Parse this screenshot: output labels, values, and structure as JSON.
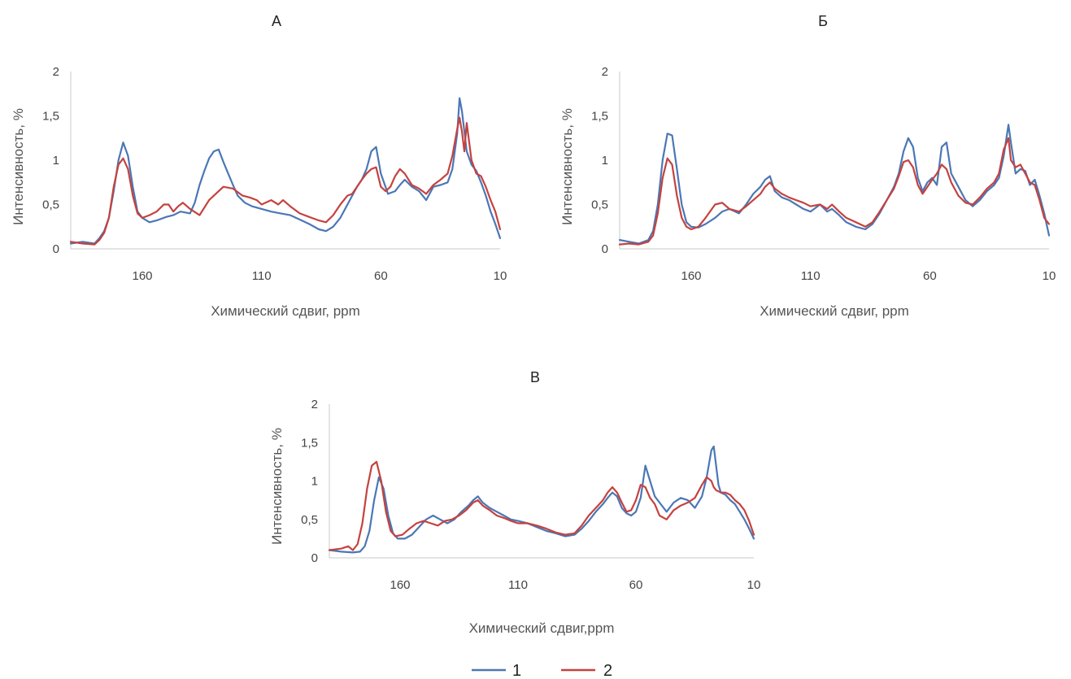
{
  "colors": {
    "series1": "#4b77b5",
    "series2": "#c5423e",
    "axis": "#c8c8c8"
  },
  "legend": {
    "items": [
      "1",
      "2"
    ]
  },
  "chart_data": [
    {
      "type": "line",
      "title": "А",
      "xlabel": "Химический сдвиг, ppm",
      "ylabel": "Интенсивность, %",
      "xlim": [
        190,
        10
      ],
      "ylim": [
        0,
        2
      ],
      "x_ticks": [
        "160",
        "110",
        "60",
        "10"
      ],
      "y_ticks": [
        "0",
        "0,5",
        "1",
        "1,5",
        "2"
      ],
      "grid": false,
      "series": [
        {
          "name": "1",
          "x": [
            190,
            185,
            180,
            178,
            176,
            174,
            172,
            170,
            168,
            166,
            164,
            162,
            160,
            157,
            154,
            150,
            147,
            144,
            140,
            138,
            136,
            134,
            132,
            130,
            128,
            126,
            124,
            122,
            120,
            117,
            114,
            110,
            106,
            102,
            98,
            94,
            90,
            86,
            83,
            80,
            77,
            74,
            72,
            70,
            68,
            66,
            64,
            62,
            60,
            57,
            54,
            52,
            50,
            47,
            44,
            41,
            38,
            35,
            32,
            30,
            28,
            27,
            26,
            24,
            22,
            20,
            18,
            16,
            14,
            12,
            10
          ],
          "y": [
            0.06,
            0.08,
            0.06,
            0.12,
            0.2,
            0.35,
            0.65,
            1.0,
            1.2,
            1.05,
            0.7,
            0.42,
            0.35,
            0.3,
            0.32,
            0.36,
            0.38,
            0.42,
            0.4,
            0.52,
            0.72,
            0.88,
            1.02,
            1.1,
            1.12,
            0.98,
            0.85,
            0.72,
            0.6,
            0.52,
            0.48,
            0.45,
            0.42,
            0.4,
            0.38,
            0.33,
            0.28,
            0.22,
            0.2,
            0.25,
            0.35,
            0.5,
            0.6,
            0.7,
            0.78,
            0.9,
            1.1,
            1.15,
            0.85,
            0.62,
            0.65,
            0.72,
            0.78,
            0.7,
            0.65,
            0.55,
            0.7,
            0.72,
            0.75,
            0.9,
            1.3,
            1.7,
            1.55,
            1.1,
            0.95,
            0.88,
            0.75,
            0.6,
            0.42,
            0.28,
            0.12
          ]
        },
        {
          "name": "2",
          "x": [
            190,
            185,
            180,
            178,
            176,
            174,
            172,
            170,
            168,
            166,
            164,
            162,
            160,
            157,
            154,
            151,
            149,
            147,
            145,
            143,
            140,
            136,
            132,
            128,
            126,
            122,
            118,
            115,
            112,
            110,
            106,
            103,
            101,
            98,
            94,
            90,
            86,
            83,
            80,
            77,
            74,
            72,
            70,
            68,
            66,
            64,
            62,
            60,
            58,
            56,
            54,
            52,
            50,
            47,
            44,
            41,
            38,
            35,
            32,
            30,
            28,
            27,
            26,
            25,
            24,
            22,
            20,
            18,
            16,
            14,
            12,
            10
          ],
          "y": [
            0.08,
            0.06,
            0.05,
            0.1,
            0.18,
            0.35,
            0.7,
            0.95,
            1.02,
            0.9,
            0.6,
            0.4,
            0.35,
            0.38,
            0.42,
            0.5,
            0.5,
            0.42,
            0.48,
            0.52,
            0.45,
            0.38,
            0.55,
            0.65,
            0.7,
            0.68,
            0.6,
            0.58,
            0.55,
            0.5,
            0.55,
            0.5,
            0.55,
            0.48,
            0.4,
            0.36,
            0.32,
            0.3,
            0.38,
            0.5,
            0.6,
            0.62,
            0.7,
            0.78,
            0.85,
            0.9,
            0.92,
            0.7,
            0.65,
            0.7,
            0.82,
            0.9,
            0.85,
            0.72,
            0.68,
            0.62,
            0.72,
            0.78,
            0.85,
            1.05,
            1.35,
            1.48,
            1.32,
            1.1,
            1.42,
            1.0,
            0.85,
            0.82,
            0.7,
            0.55,
            0.42,
            0.22
          ]
        }
      ]
    },
    {
      "type": "line",
      "title": "Б",
      "xlabel": "Химический сдвиг, ppm",
      "ylabel": "Интенсивность, %",
      "xlim": [
        190,
        10
      ],
      "ylim": [
        0,
        2
      ],
      "x_ticks": [
        "160",
        "110",
        "60",
        "10"
      ],
      "y_ticks": [
        "0",
        "0,5",
        "1",
        "1,5",
        "2"
      ],
      "grid": false,
      "series": [
        {
          "name": "1",
          "x": [
            190,
            186,
            182,
            178,
            176,
            174,
            172,
            170,
            168,
            166,
            164,
            162,
            160,
            157,
            154,
            150,
            147,
            144,
            140,
            137,
            134,
            131,
            129,
            127,
            125,
            122,
            119,
            116,
            113,
            110,
            106,
            103,
            101,
            98,
            95,
            91,
            87,
            84,
            81,
            78,
            75,
            73,
            71,
            69,
            67,
            65,
            63,
            61,
            59,
            57,
            55,
            53,
            51,
            48,
            45,
            42,
            39,
            36,
            33,
            31,
            29,
            27,
            26,
            24,
            22,
            20,
            18,
            16,
            14,
            12,
            10
          ],
          "y": [
            0.1,
            0.08,
            0.06,
            0.1,
            0.2,
            0.5,
            1.0,
            1.3,
            1.28,
            0.9,
            0.5,
            0.3,
            0.25,
            0.24,
            0.28,
            0.35,
            0.42,
            0.45,
            0.4,
            0.5,
            0.62,
            0.7,
            0.78,
            0.82,
            0.65,
            0.58,
            0.55,
            0.5,
            0.45,
            0.42,
            0.5,
            0.42,
            0.45,
            0.38,
            0.3,
            0.25,
            0.22,
            0.28,
            0.4,
            0.55,
            0.7,
            0.85,
            1.1,
            1.25,
            1.15,
            0.8,
            0.65,
            0.75,
            0.8,
            0.72,
            1.15,
            1.2,
            0.85,
            0.7,
            0.55,
            0.48,
            0.55,
            0.65,
            0.72,
            0.8,
            1.05,
            1.4,
            1.2,
            0.85,
            0.9,
            0.88,
            0.72,
            0.78,
            0.6,
            0.4,
            0.15
          ]
        },
        {
          "name": "2",
          "x": [
            190,
            186,
            182,
            178,
            176,
            174,
            172,
            170,
            168,
            166,
            164,
            162,
            160,
            157,
            154,
            150,
            147,
            144,
            140,
            137,
            134,
            131,
            129,
            127,
            125,
            122,
            119,
            116,
            113,
            110,
            106,
            103,
            101,
            98,
            95,
            91,
            87,
            84,
            81,
            78,
            75,
            73,
            71,
            69,
            67,
            65,
            63,
            61,
            59,
            57,
            55,
            53,
            51,
            48,
            45,
            42,
            39,
            36,
            33,
            31,
            29,
            27,
            26,
            24,
            22,
            20,
            18,
            16,
            14,
            12,
            10
          ],
          "y": [
            0.05,
            0.06,
            0.05,
            0.08,
            0.15,
            0.4,
            0.8,
            1.02,
            0.95,
            0.6,
            0.35,
            0.25,
            0.22,
            0.25,
            0.35,
            0.5,
            0.52,
            0.45,
            0.42,
            0.48,
            0.55,
            0.62,
            0.7,
            0.75,
            0.68,
            0.62,
            0.58,
            0.55,
            0.52,
            0.48,
            0.5,
            0.45,
            0.5,
            0.42,
            0.35,
            0.3,
            0.25,
            0.3,
            0.42,
            0.55,
            0.68,
            0.82,
            0.98,
            1.0,
            0.92,
            0.72,
            0.62,
            0.7,
            0.78,
            0.85,
            0.95,
            0.9,
            0.75,
            0.6,
            0.52,
            0.5,
            0.58,
            0.68,
            0.75,
            0.85,
            1.12,
            1.25,
            1.0,
            0.92,
            0.95,
            0.85,
            0.75,
            0.72,
            0.55,
            0.35,
            0.28
          ]
        }
      ]
    },
    {
      "type": "line",
      "title": "В",
      "xlabel": "Химический сдвиг,ppm",
      "ylabel": "Интенсивность, %",
      "xlim": [
        190,
        10
      ],
      "ylim": [
        0,
        2
      ],
      "x_ticks": [
        "160",
        "110",
        "60",
        "10"
      ],
      "y_ticks": [
        "0",
        "0,5",
        "1",
        "1,5",
        "2"
      ],
      "grid": false,
      "series": [
        {
          "name": "1",
          "x": [
            190,
            185,
            180,
            177,
            175,
            173,
            171,
            169,
            167,
            165,
            163,
            161,
            158,
            155,
            152,
            149,
            146,
            143,
            140,
            137,
            134,
            131,
            129,
            127,
            125,
            122,
            119,
            116,
            113,
            110,
            106,
            102,
            98,
            94,
            90,
            86,
            83,
            80,
            77,
            74,
            72,
            70,
            68,
            66,
            64,
            62,
            60,
            58,
            56,
            54,
            52,
            50,
            47,
            44,
            41,
            38,
            35,
            32,
            30,
            28,
            27,
            26,
            25,
            24,
            22,
            20,
            18,
            16,
            14,
            12,
            10
          ],
          "y": [
            0.1,
            0.08,
            0.07,
            0.08,
            0.15,
            0.35,
            0.75,
            1.05,
            0.9,
            0.55,
            0.32,
            0.25,
            0.25,
            0.3,
            0.4,
            0.5,
            0.55,
            0.5,
            0.45,
            0.5,
            0.6,
            0.68,
            0.75,
            0.8,
            0.72,
            0.65,
            0.6,
            0.55,
            0.5,
            0.48,
            0.45,
            0.4,
            0.35,
            0.32,
            0.28,
            0.3,
            0.38,
            0.48,
            0.6,
            0.7,
            0.78,
            0.85,
            0.8,
            0.65,
            0.58,
            0.55,
            0.6,
            0.78,
            1.2,
            1.0,
            0.8,
            0.72,
            0.6,
            0.72,
            0.78,
            0.75,
            0.65,
            0.8,
            1.05,
            1.4,
            1.45,
            1.2,
            0.95,
            0.85,
            0.82,
            0.75,
            0.7,
            0.6,
            0.5,
            0.38,
            0.25
          ]
        },
        {
          "name": "2",
          "x": [
            190,
            185,
            182,
            180,
            178,
            176,
            174,
            172,
            170,
            168,
            166,
            164,
            162,
            159,
            156,
            153,
            150,
            147,
            144,
            141,
            138,
            135,
            132,
            129,
            127,
            125,
            122,
            119,
            116,
            113,
            110,
            106,
            102,
            98,
            94,
            90,
            86,
            83,
            80,
            77,
            74,
            72,
            70,
            68,
            66,
            64,
            62,
            60,
            58,
            56,
            54,
            52,
            50,
            47,
            44,
            41,
            38,
            35,
            32,
            30,
            28,
            27,
            26,
            24,
            22,
            20,
            18,
            16,
            14,
            12,
            10
          ],
          "y": [
            0.1,
            0.12,
            0.15,
            0.1,
            0.18,
            0.45,
            0.9,
            1.2,
            1.25,
            1.0,
            0.6,
            0.35,
            0.28,
            0.3,
            0.38,
            0.45,
            0.48,
            0.45,
            0.42,
            0.48,
            0.5,
            0.55,
            0.62,
            0.72,
            0.75,
            0.68,
            0.62,
            0.55,
            0.52,
            0.48,
            0.45,
            0.45,
            0.42,
            0.38,
            0.33,
            0.3,
            0.32,
            0.42,
            0.55,
            0.65,
            0.75,
            0.85,
            0.92,
            0.85,
            0.72,
            0.6,
            0.62,
            0.75,
            0.95,
            0.92,
            0.78,
            0.7,
            0.55,
            0.5,
            0.62,
            0.68,
            0.72,
            0.78,
            0.95,
            1.05,
            1.0,
            0.92,
            0.88,
            0.85,
            0.85,
            0.82,
            0.75,
            0.7,
            0.62,
            0.48,
            0.3
          ]
        }
      ]
    }
  ]
}
